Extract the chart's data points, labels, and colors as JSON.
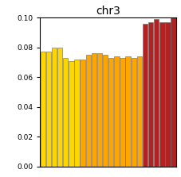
{
  "title": "chr3",
  "values": [
    0.077,
    0.077,
    0.08,
    0.08,
    0.073,
    0.071,
    0.072,
    0.072,
    0.075,
    0.076,
    0.076,
    0.075,
    0.073,
    0.074,
    0.073,
    0.074,
    0.073,
    0.074,
    0.096,
    0.097,
    0.099,
    0.097,
    0.097,
    0.1
  ],
  "colors": [
    "#FFD700",
    "#FFD700",
    "#FFD700",
    "#FFD700",
    "#FFD700",
    "#FFD700",
    "#FFD700",
    "#FFA500",
    "#FFA500",
    "#FFA500",
    "#FFA500",
    "#FFA500",
    "#FFA500",
    "#FFA500",
    "#FFA500",
    "#FFA500",
    "#FFA500",
    "#FFA500",
    "#B22222",
    "#B22222",
    "#B22222",
    "#B22222",
    "#B22222",
    "#B22222"
  ],
  "ylim": [
    0.0,
    0.1
  ],
  "yticks": [
    0.0,
    0.02,
    0.04,
    0.06,
    0.08,
    0.1
  ],
  "background_color": "#FFFFFF",
  "bar_edge_color": "#666666",
  "title_fontsize": 10
}
